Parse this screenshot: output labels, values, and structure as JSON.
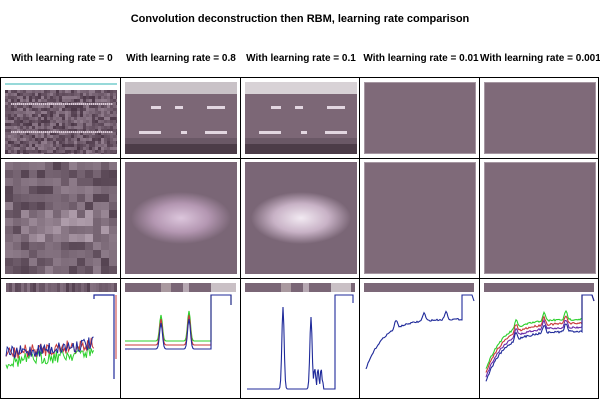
{
  "figure": {
    "title": "Convolution deconstruction then RBM, learning rate comparison"
  },
  "columns": [
    {
      "label": "With learning rate = 0"
    },
    {
      "label": "With learning rate = 0.8"
    },
    {
      "label": "With learning rate = 0.1"
    },
    {
      "label": "With learning rate = 0.01"
    },
    {
      "label": "With learning rate = 0.001"
    }
  ],
  "colors": {
    "panel_base": "#76606f",
    "bright_band": "#e8d8e8",
    "line_blue": "#1f2a9a",
    "line_red": "#c83a3a",
    "line_green": "#2bd02b",
    "line_purple": "#6a2aa8",
    "teal_rule": "#2fb3b3"
  }
}
